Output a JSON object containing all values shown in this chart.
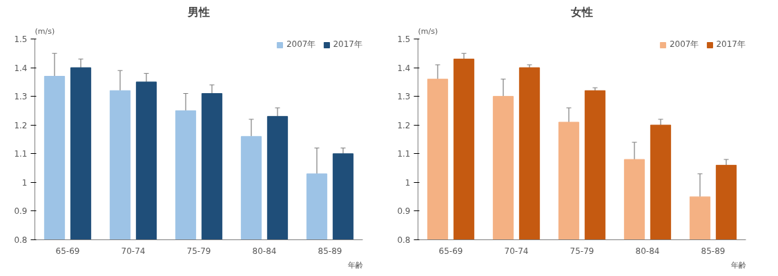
{
  "chart_data": [
    {
      "type": "bar",
      "title": "男性",
      "ylabel": "(m/s)",
      "xlabel": "年齢",
      "categories": [
        "65-69",
        "70-74",
        "75-79",
        "80-84",
        "85-89"
      ],
      "ylim": [
        0.8,
        1.5
      ],
      "yticks": [
        0.8,
        0.9,
        1,
        1.1,
        1.2,
        1.3,
        1.4,
        1.5
      ],
      "grid": false,
      "legend": "top right",
      "series": [
        {
          "name": "2007年",
          "color": "#9dc3e6",
          "values": [
            1.37,
            1.32,
            1.25,
            1.16,
            1.03
          ],
          "errors": [
            [
              1.37,
              1.45
            ],
            [
              1.32,
              1.39
            ],
            [
              1.25,
              1.31
            ],
            [
              1.16,
              1.22
            ],
            [
              1.03,
              1.12
            ]
          ]
        },
        {
          "name": "2017年",
          "color": "#1f4e79",
          "values": [
            1.4,
            1.35,
            1.31,
            1.23,
            1.1
          ],
          "errors": [
            [
              1.4,
              1.43
            ],
            [
              1.35,
              1.38
            ],
            [
              1.31,
              1.34
            ],
            [
              1.23,
              1.26
            ],
            [
              1.1,
              1.12
            ]
          ]
        }
      ]
    },
    {
      "type": "bar",
      "title": "女性",
      "ylabel": "(m/s)",
      "xlabel": "年齢",
      "categories": [
        "65-69",
        "70-74",
        "75-79",
        "80-84",
        "85-89"
      ],
      "ylim": [
        0.8,
        1.5
      ],
      "yticks": [
        0.8,
        0.9,
        1,
        1.1,
        1.2,
        1.3,
        1.4,
        1.5
      ],
      "grid": false,
      "legend": "top right",
      "series": [
        {
          "name": "2007年",
          "color": "#f4b183",
          "values": [
            1.36,
            1.3,
            1.21,
            1.08,
            0.95
          ],
          "errors": [
            [
              1.36,
              1.41
            ],
            [
              1.3,
              1.36
            ],
            [
              1.21,
              1.26
            ],
            [
              1.08,
              1.14
            ],
            [
              0.95,
              1.03
            ]
          ]
        },
        {
          "name": "2017年",
          "color": "#c55a11",
          "values": [
            1.43,
            1.4,
            1.32,
            1.2,
            1.06
          ],
          "errors": [
            [
              1.43,
              1.45
            ],
            [
              1.4,
              1.41
            ],
            [
              1.32,
              1.33
            ],
            [
              1.2,
              1.22
            ],
            [
              1.06,
              1.08
            ]
          ]
        }
      ]
    }
  ]
}
